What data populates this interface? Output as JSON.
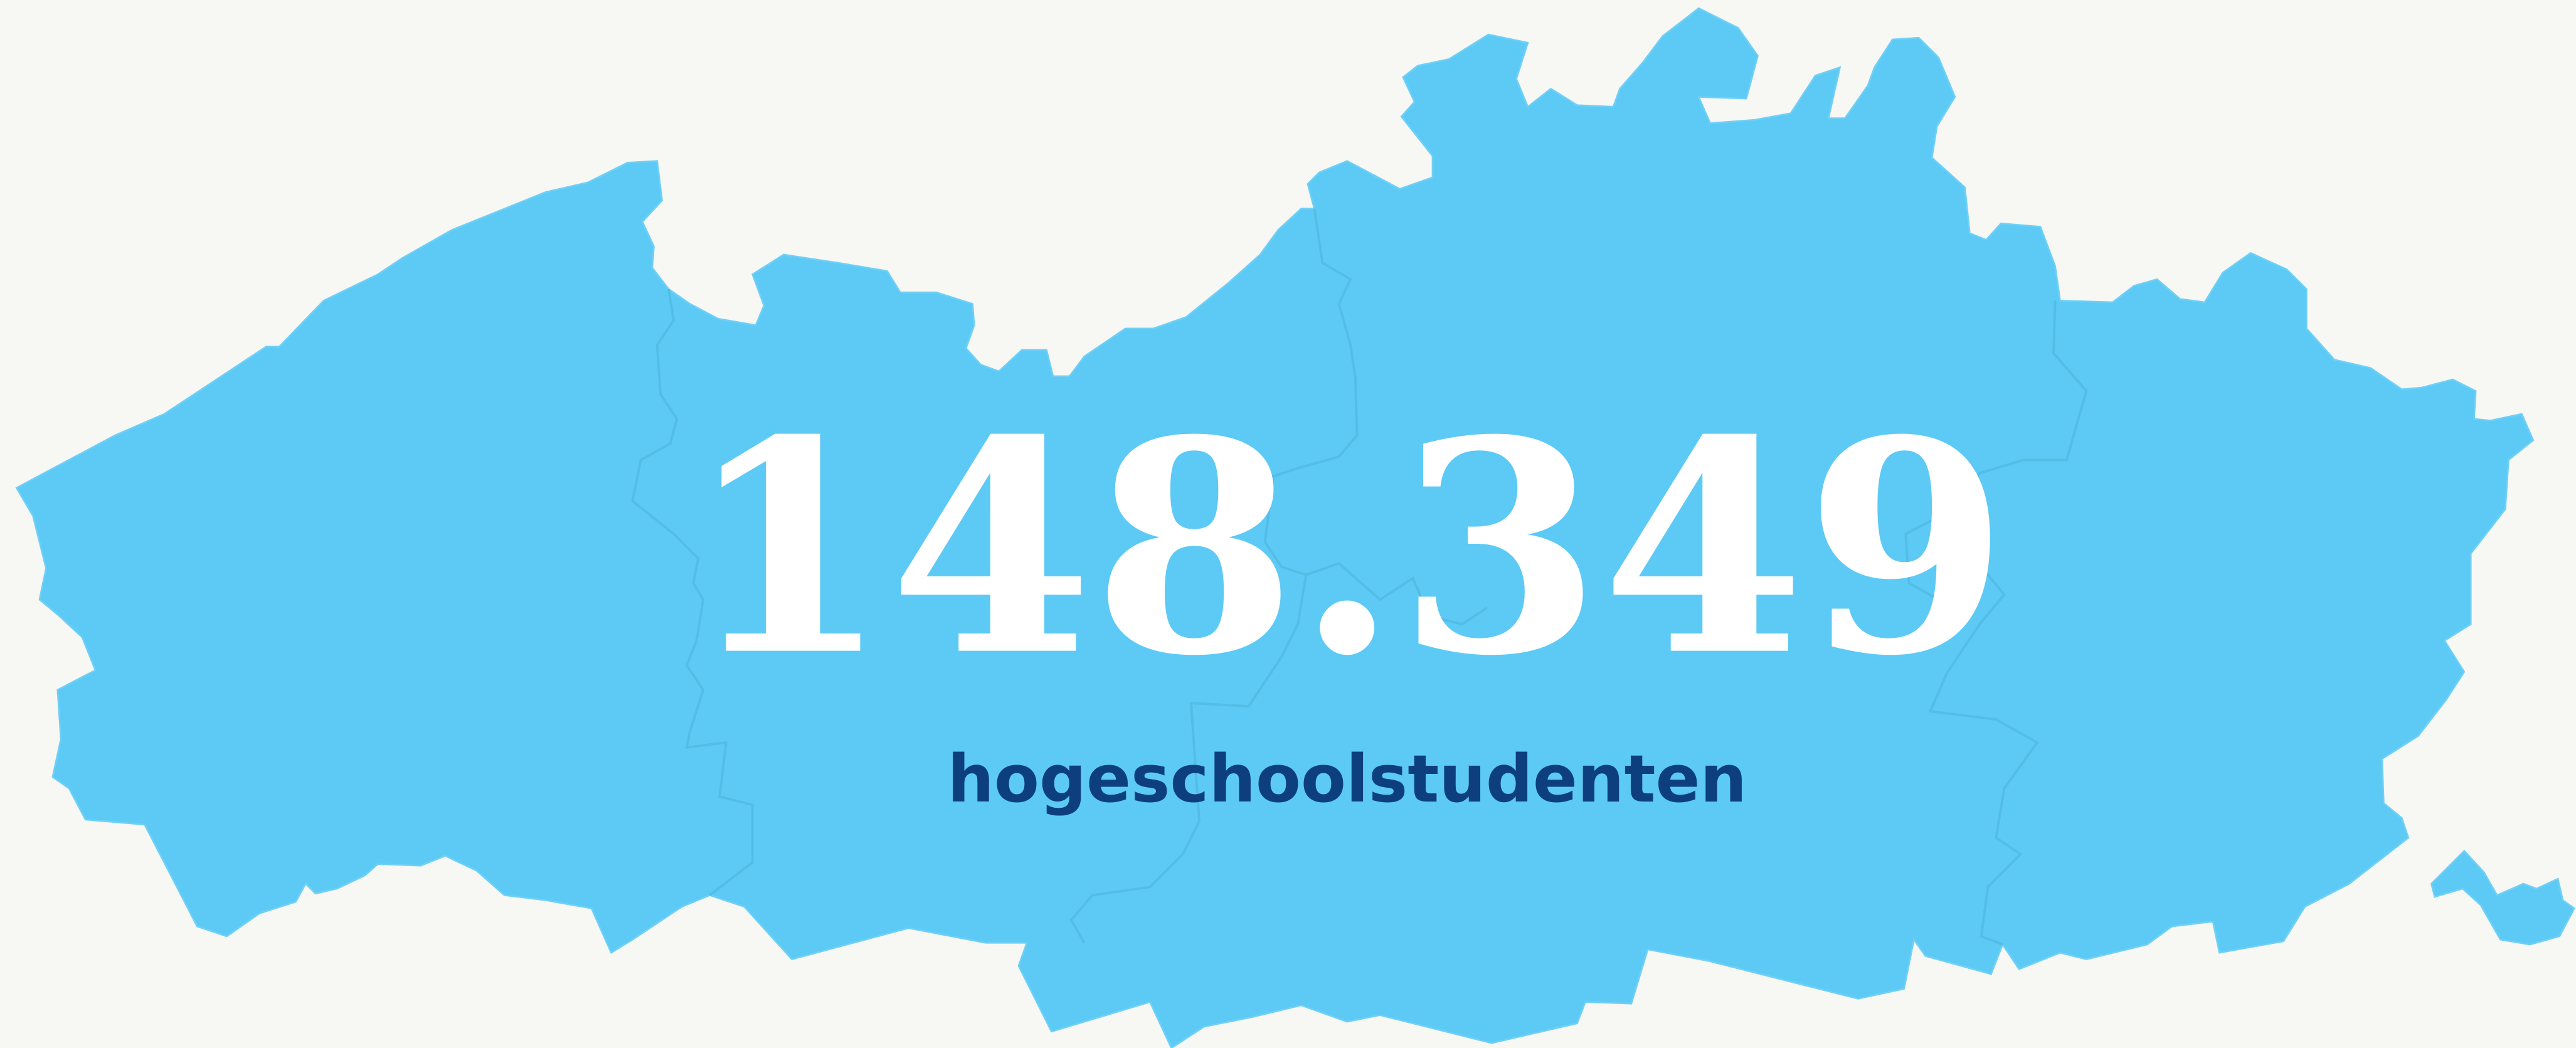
{
  "stat": {
    "value": "148.349",
    "label": "hogeschoolstudenten"
  }
}
